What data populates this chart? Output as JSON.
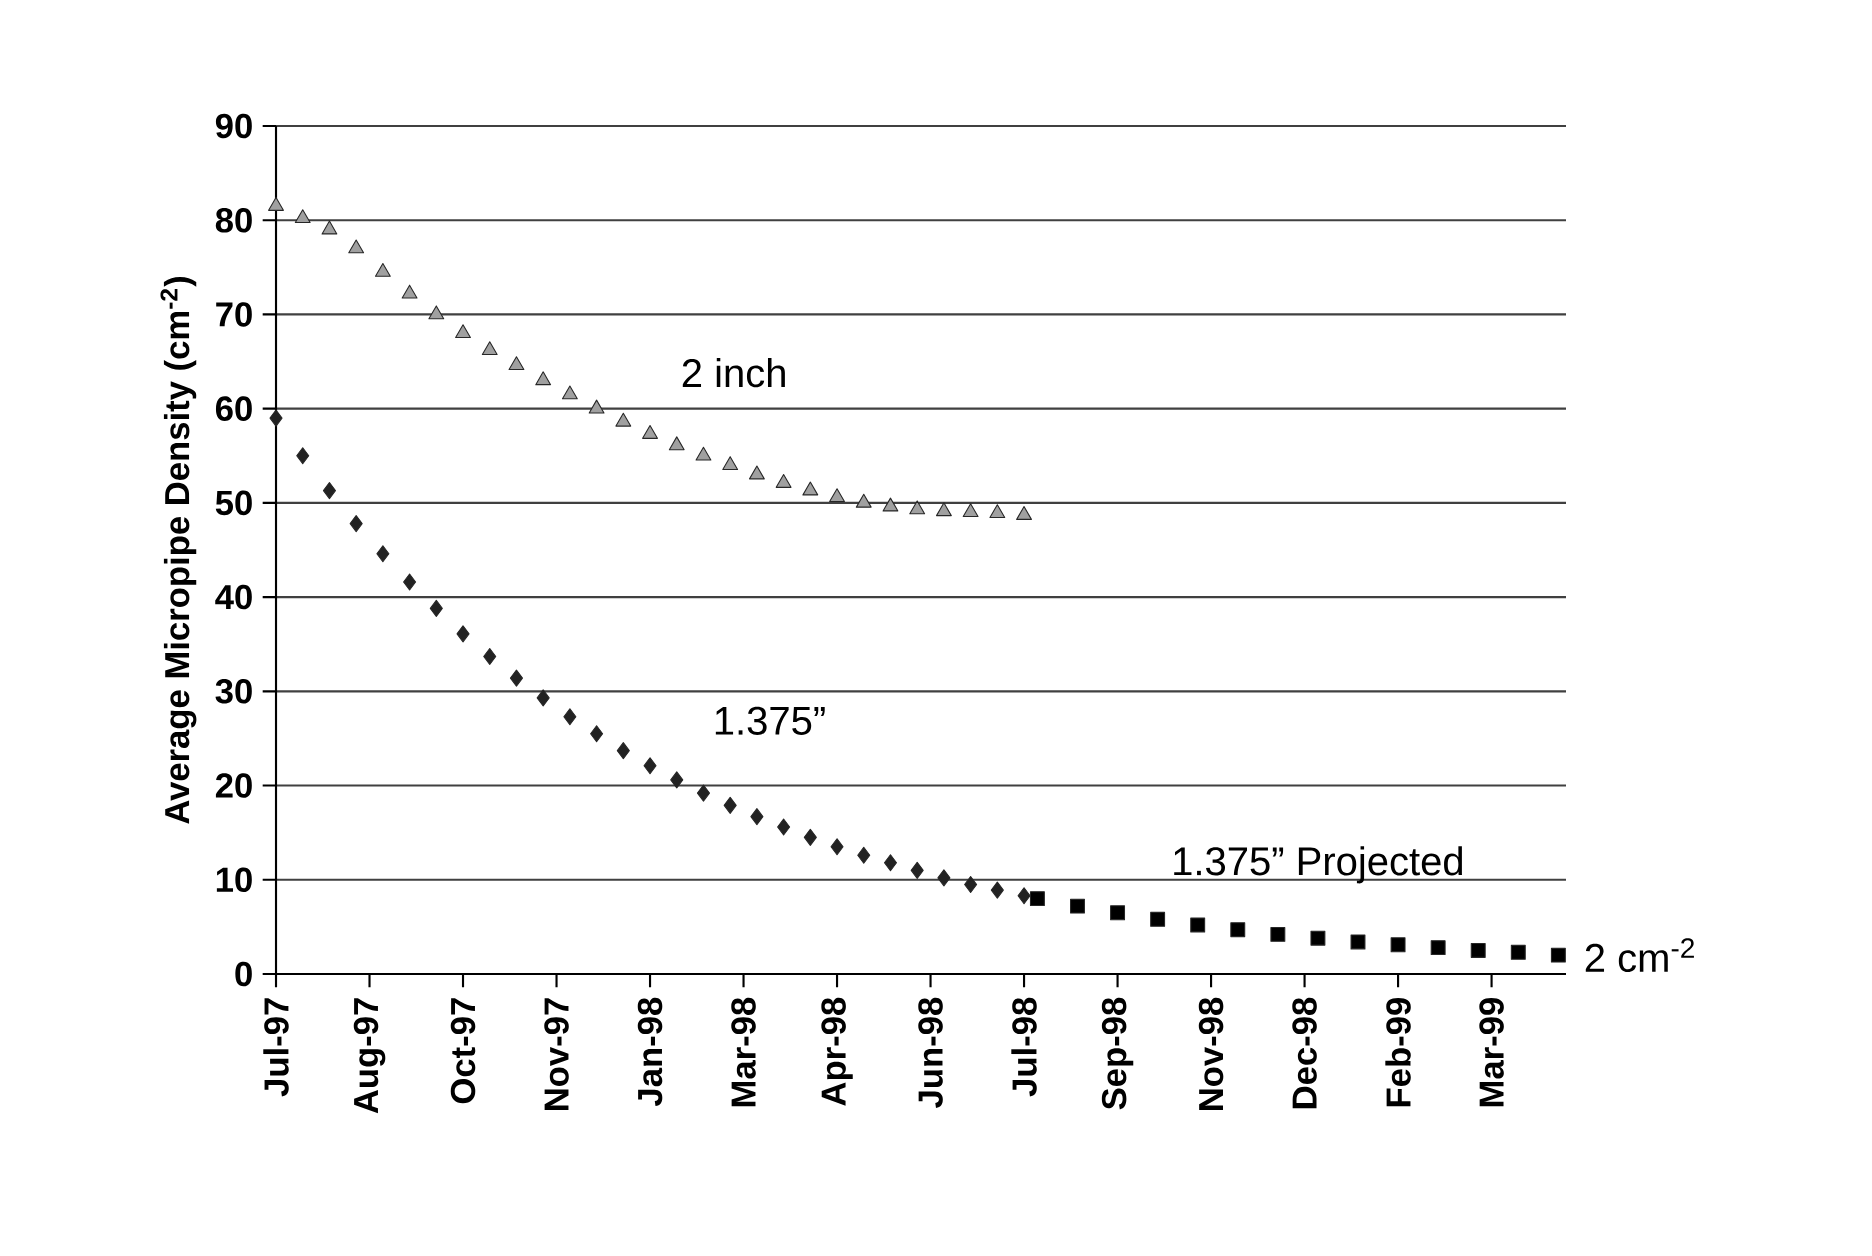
{
  "chart_data": {
    "type": "scatter",
    "ylabel": "Average Micropipe Density (cm$^{-2}$)",
    "grid": "y",
    "xlim": [
      "1997-07-01",
      "1999-05-08"
    ],
    "ylim": [
      0,
      90
    ],
    "yticks": [
      0,
      10,
      20,
      30,
      40,
      50,
      60,
      70,
      80,
      90
    ],
    "xticks": [
      {
        "value": "1997-07-01",
        "label": "Jul-97"
      },
      {
        "value": "1997-08-19",
        "label": "Aug-97"
      },
      {
        "value": "1997-10-07",
        "label": "Oct-97"
      },
      {
        "value": "1997-11-25",
        "label": "Nov-97"
      },
      {
        "value": "1998-01-13",
        "label": "Jan-98"
      },
      {
        "value": "1998-03-03",
        "label": "Mar-98"
      },
      {
        "value": "1998-04-21",
        "label": "Apr-98"
      },
      {
        "value": "1998-06-09",
        "label": "Jun-98"
      },
      {
        "value": "1998-07-28",
        "label": "Jul-98"
      },
      {
        "value": "1998-09-15",
        "label": "Sep-98"
      },
      {
        "value": "1998-11-03",
        "label": "Nov-98"
      },
      {
        "value": "1998-12-22",
        "label": "Dec-98"
      },
      {
        "value": "1999-02-09",
        "label": "Feb-99"
      },
      {
        "value": "1999-03-30",
        "label": "Mar-99"
      }
    ],
    "series": [
      {
        "name": "2 inch",
        "color": "#a0a0a0",
        "marker": "triangle",
        "x": [
          "1997-07-01",
          "1997-07-15",
          "1997-07-29",
          "1997-08-12",
          "1997-08-26",
          "1997-09-09",
          "1997-09-23",
          "1997-10-07",
          "1997-10-21",
          "1997-11-04",
          "1997-11-18",
          "1997-12-02",
          "1997-12-16",
          "1997-12-30",
          "1998-01-13",
          "1998-01-27",
          "1998-02-10",
          "1998-02-24",
          "1998-03-10",
          "1998-03-24",
          "1998-04-07",
          "1998-04-21",
          "1998-05-05",
          "1998-05-19",
          "1998-06-02",
          "1998-06-16",
          "1998-06-30",
          "1998-07-14",
          "1998-07-28"
        ],
        "values": [
          81.5,
          80.2,
          79.0,
          77.0,
          74.5,
          72.2,
          70.0,
          68.0,
          66.2,
          64.6,
          63.0,
          61.5,
          60.0,
          58.6,
          57.3,
          56.1,
          55.0,
          54.0,
          53.0,
          52.1,
          51.3,
          50.6,
          50.0,
          49.6,
          49.3,
          49.1,
          49.0,
          48.9,
          48.7
        ]
      },
      {
        "name": "1.375”",
        "color": "#222222",
        "marker": "diamond",
        "x": [
          "1997-07-01",
          "1997-07-15",
          "1997-07-29",
          "1997-08-12",
          "1997-08-26",
          "1997-09-09",
          "1997-09-23",
          "1997-10-07",
          "1997-10-21",
          "1997-11-04",
          "1997-11-18",
          "1997-12-02",
          "1997-12-16",
          "1997-12-30",
          "1998-01-13",
          "1998-01-27",
          "1998-02-10",
          "1998-02-24",
          "1998-03-10",
          "1998-03-24",
          "1998-04-07",
          "1998-04-21",
          "1998-05-05",
          "1998-05-19",
          "1998-06-02",
          "1998-06-16",
          "1998-06-30",
          "1998-07-14",
          "1998-07-28"
        ],
        "values": [
          59.0,
          55.0,
          51.3,
          47.8,
          44.6,
          41.6,
          38.8,
          36.1,
          33.7,
          31.4,
          29.3,
          27.3,
          25.5,
          23.7,
          22.1,
          20.6,
          19.2,
          17.9,
          16.7,
          15.6,
          14.5,
          13.5,
          12.6,
          11.8,
          11.0,
          10.2,
          9.5,
          8.9,
          8.3
        ]
      },
      {
        "name": "1.375” Projected",
        "color": "#000000",
        "marker": "square",
        "x": [
          "1998-08-04",
          "1998-08-25",
          "1998-09-15",
          "1998-10-06",
          "1998-10-27",
          "1998-11-17",
          "1998-12-08",
          "1998-12-29",
          "1999-01-19",
          "1999-02-09",
          "1999-03-02",
          "1999-03-23",
          "1999-04-13",
          "1999-05-04"
        ],
        "values": [
          8.0,
          7.2,
          6.5,
          5.8,
          5.2,
          4.7,
          4.2,
          3.8,
          3.4,
          3.1,
          2.8,
          2.5,
          2.3,
          2.0
        ]
      }
    ],
    "annotations": [
      {
        "text": "2 cm$^{-2}$",
        "x": "1999-05-04",
        "y": 2
      }
    ]
  }
}
